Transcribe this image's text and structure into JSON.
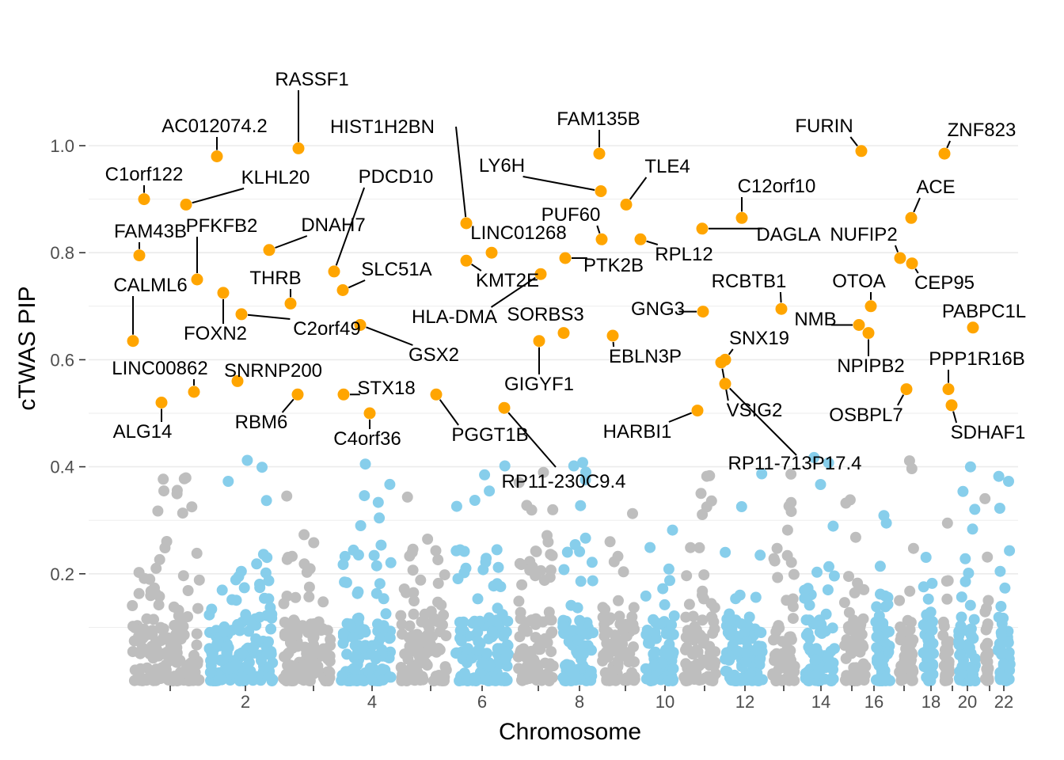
{
  "chart_data": {
    "type": "scatter",
    "title": "",
    "xlabel": "Chromosome",
    "ylabel": "cTWAS PIP",
    "ylim": [
      0,
      1.1
    ],
    "yticks": [
      0.2,
      0.4,
      0.6,
      0.8,
      1.0
    ],
    "ytick_labels": [
      "0.2",
      "0.4",
      "0.6",
      "0.8",
      "1.0"
    ],
    "xticks_labeled": [
      {
        "label": "2",
        "chrom": 2
      },
      {
        "label": "4",
        "chrom": 4
      },
      {
        "label": "6",
        "chrom": 6
      },
      {
        "label": "8",
        "chrom": 8
      },
      {
        "label": "10",
        "chrom": 10
      },
      {
        "label": "12",
        "chrom": 12
      },
      {
        "label": "14",
        "chrom": 14
      },
      {
        "label": "16",
        "chrom": 16
      },
      {
        "label": "18",
        "chrom": 18
      },
      {
        "label": "20",
        "chrom": 20
      },
      {
        "label": "22",
        "chrom": 22
      }
    ],
    "chromosomes": [
      1,
      2,
      3,
      4,
      5,
      6,
      7,
      8,
      9,
      10,
      11,
      12,
      13,
      14,
      15,
      16,
      17,
      18,
      19,
      20,
      21,
      22
    ],
    "chromosome_colors": {
      "odd": "#bebebe",
      "even": "#87ceeb"
    },
    "highlight_color": "#ffa500",
    "background_points_note": "Non-significant genes (PIP < 0.5) shown as grey/sky-blue dots alternating by chromosome",
    "highlighted_genes": [
      {
        "gene": "RASSF1",
        "chrom": 3,
        "pip": 0.995
      },
      {
        "gene": "AC012074.2",
        "chrom": 2,
        "pip": 0.98
      },
      {
        "gene": "HIST1H2BN",
        "chrom": 6,
        "pip": 0.855
      },
      {
        "gene": "FAM135B",
        "chrom": 8,
        "pip": 0.985
      },
      {
        "gene": "FURIN",
        "chrom": 15,
        "pip": 0.99
      },
      {
        "gene": "ZNF823",
        "chrom": 19,
        "pip": 0.985
      },
      {
        "gene": "C1orf122",
        "chrom": 1,
        "pip": 0.9
      },
      {
        "gene": "KLHL20",
        "chrom": 1,
        "pip": 0.89
      },
      {
        "gene": "PDCD10",
        "chrom": 3,
        "pip": 0.765
      },
      {
        "gene": "LY6H",
        "chrom": 8,
        "pip": 0.915
      },
      {
        "gene": "TLE4",
        "chrom": 9,
        "pip": 0.89
      },
      {
        "gene": "C12orf10",
        "chrom": 12,
        "pip": 0.865
      },
      {
        "gene": "ACE",
        "chrom": 17,
        "pip": 0.865
      },
      {
        "gene": "FAM43B",
        "chrom": 1,
        "pip": 0.795
      },
      {
        "gene": "PFKFB2",
        "chrom": 1,
        "pip": 0.75
      },
      {
        "gene": "DNAH7",
        "chrom": 2,
        "pip": 0.805
      },
      {
        "gene": "PUF60",
        "chrom": 8,
        "pip": 0.825
      },
      {
        "gene": "LINC01268",
        "chrom": 6,
        "pip": 0.8
      },
      {
        "gene": "DAGLA",
        "chrom": 11,
        "pip": 0.845
      },
      {
        "gene": "NUFIP2",
        "chrom": 17,
        "pip": 0.79
      },
      {
        "gene": "RPL12",
        "chrom": 9,
        "pip": 0.825
      },
      {
        "gene": "PTK2B",
        "chrom": 8,
        "pip": 0.79
      },
      {
        "gene": "CEP95",
        "chrom": 17,
        "pip": 0.78
      },
      {
        "gene": "CALML6",
        "chrom": 1,
        "pip": 0.635
      },
      {
        "gene": "THRB",
        "chrom": 3,
        "pip": 0.705
      },
      {
        "gene": "SLC51A",
        "chrom": 3,
        "pip": 0.73
      },
      {
        "gene": "KMT2E",
        "chrom": 7,
        "pip": 0.785
      },
      {
        "gene": "RCBTB1",
        "chrom": 13,
        "pip": 0.695
      },
      {
        "gene": "OTOA",
        "chrom": 16,
        "pip": 0.7
      },
      {
        "gene": "FOXN2",
        "chrom": 2,
        "pip": 0.725
      },
      {
        "gene": "C2orf49",
        "chrom": 2,
        "pip": 0.685
      },
      {
        "gene": "HLA-DMA",
        "chrom": 6,
        "pip": 0.76
      },
      {
        "gene": "SORBS3",
        "chrom": 8,
        "pip": 0.65
      },
      {
        "gene": "GNG3",
        "chrom": 11,
        "pip": 0.69
      },
      {
        "gene": "PABPC1L",
        "chrom": 20,
        "pip": 0.66
      },
      {
        "gene": "GSX2",
        "chrom": 4,
        "pip": 0.665
      },
      {
        "gene": "NMB",
        "chrom": 15,
        "pip": 0.665
      },
      {
        "gene": "SNX19",
        "chrom": 11,
        "pip": 0.6
      },
      {
        "gene": "EBLN3P",
        "chrom": 9,
        "pip": 0.645
      },
      {
        "gene": "NPIPB2",
        "chrom": 16,
        "pip": 0.65
      },
      {
        "gene": "LINC00862",
        "chrom": 1,
        "pip": 0.54
      },
      {
        "gene": "SNRNP200",
        "chrom": 2,
        "pip": 0.56
      },
      {
        "gene": "GIGYF1",
        "chrom": 7,
        "pip": 0.635
      },
      {
        "gene": "PPP1R16B",
        "chrom": 20,
        "pip": 0.545
      },
      {
        "gene": "STX18",
        "chrom": 4,
        "pip": 0.535
      },
      {
        "gene": "RBM6",
        "chrom": 3,
        "pip": 0.535
      },
      {
        "gene": "VSIG2",
        "chrom": 11,
        "pip": 0.595
      },
      {
        "gene": "OSBPL7",
        "chrom": 17,
        "pip": 0.545
      },
      {
        "gene": "ALG14",
        "chrom": 1,
        "pip": 0.52
      },
      {
        "gene": "C4orf36",
        "chrom": 4,
        "pip": 0.5
      },
      {
        "gene": "PGGT1B",
        "chrom": 5,
        "pip": 0.535
      },
      {
        "gene": "HARBI1",
        "chrom": 11,
        "pip": 0.505
      },
      {
        "gene": "SDHAF1",
        "chrom": 19,
        "pip": 0.515
      },
      {
        "gene": "RP11-713P17.4",
        "chrom": 12,
        "pip": 0.555
      },
      {
        "gene": "RP11-230C9.4",
        "chrom": 7,
        "pip": 0.51
      }
    ]
  }
}
